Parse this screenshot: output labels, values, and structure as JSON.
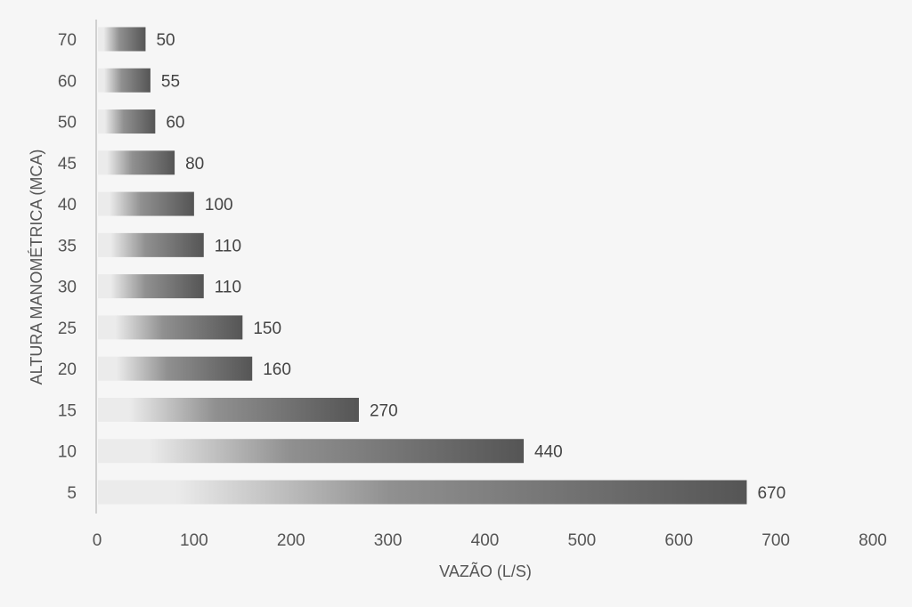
{
  "chart_data": {
    "type": "bar",
    "orientation": "horizontal",
    "categories": [
      "5",
      "10",
      "15",
      "20",
      "25",
      "30",
      "35",
      "40",
      "45",
      "50",
      "60",
      "70"
    ],
    "values": [
      670,
      440,
      270,
      160,
      150,
      110,
      110,
      100,
      80,
      60,
      55,
      50
    ],
    "xlabel": "VAZÃO (L/S)",
    "ylabel": "ALTURA MANOMÉTRICA (MCA)",
    "xlim": [
      0,
      800
    ],
    "xticks": [
      0,
      100,
      200,
      300,
      400,
      500,
      600,
      700,
      800
    ],
    "grid": false,
    "legend": "none",
    "data_labels": true,
    "colors": {
      "bar_light": "#ebebeb",
      "bar_mid": "#909090",
      "bar_dark": "#555555",
      "axis": "#d0d0d0",
      "background": "#f6f6f6"
    }
  }
}
